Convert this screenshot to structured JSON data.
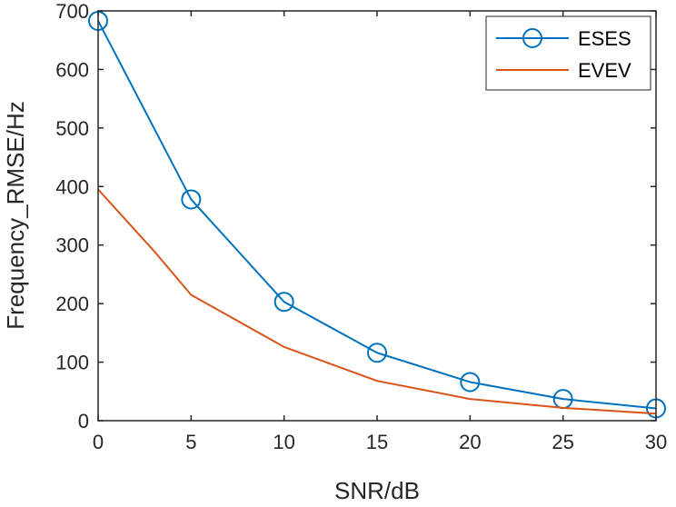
{
  "chart_data": {
    "type": "line",
    "title": "",
    "xlabel": "SNR/dB",
    "ylabel": "Frequency_RMSE/Hz",
    "xlim": [
      0,
      30
    ],
    "ylim": [
      0,
      700
    ],
    "xticks": [
      0,
      5,
      10,
      15,
      20,
      25,
      30
    ],
    "yticks": [
      0,
      100,
      200,
      300,
      400,
      500,
      600,
      700
    ],
    "grid": false,
    "legend_position": "top-right",
    "series": [
      {
        "name": "ESES",
        "color": "#0072BD",
        "marker": "circle",
        "x": [
          0,
          5,
          10,
          15,
          20,
          25,
          30
        ],
        "y": [
          683,
          378,
          203,
          116,
          66,
          37,
          21
        ]
      },
      {
        "name": "EVEV",
        "color": "#D95319",
        "marker": "none",
        "x": [
          0,
          3,
          5,
          10,
          15,
          20,
          25,
          30
        ],
        "y": [
          395,
          290,
          215,
          126,
          68,
          37,
          22,
          12
        ]
      }
    ]
  }
}
